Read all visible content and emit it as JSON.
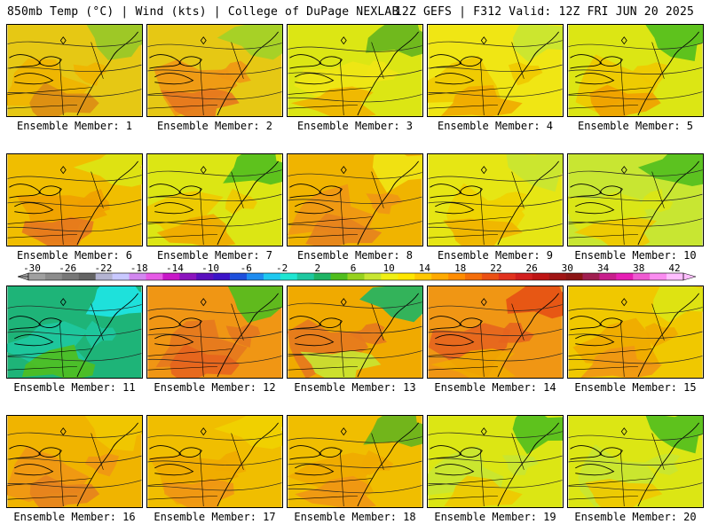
{
  "header": {
    "left": "850mb Temp (°C) | Wind (kts) | College of DuPage NEXLAB",
    "right": "12Z GEFS | F312 Valid: 12Z FRI JUN 20 2025"
  },
  "colorbar": {
    "ticks": [
      "-30",
      "-26",
      "-22",
      "-18",
      "-14",
      "-10",
      "-6",
      "-2",
      "2",
      "6",
      "10",
      "14",
      "18",
      "22",
      "26",
      "30",
      "34",
      "38",
      "42"
    ],
    "colors": [
      "#a0a0a0",
      "#8c8c8c",
      "#787878",
      "#646464",
      "#b4b4d2",
      "#c8c8ff",
      "#d287f0",
      "#e65ae6",
      "#c818c8",
      "#8c14be",
      "#5a0fbe",
      "#3c14c8",
      "#1e50dc",
      "#1e8cf0",
      "#1ec8f0",
      "#1ee6d2",
      "#1ec8a0",
      "#1eb464",
      "#50be1e",
      "#96d21e",
      "#c8e632",
      "#f0f014",
      "#ffe600",
      "#ffc800",
      "#ffaa00",
      "#ff8c00",
      "#f56e0a",
      "#eb5014",
      "#e1321e",
      "#d21e1e",
      "#be1414",
      "#a01414",
      "#8c1414",
      "#a01e50",
      "#c81e8c",
      "#e61eb4",
      "#f05ad2",
      "#fa8cf0",
      "#ffbeff"
    ]
  },
  "panels": [
    {
      "label": "Ensemble Member: 1",
      "palette": [
        "#e6c814",
        "#f0b400",
        "#dc8c14",
        "#96c828"
      ]
    },
    {
      "label": "Ensemble Member: 2",
      "palette": [
        "#e6c814",
        "#f09614",
        "#e6781e",
        "#a0d228"
      ]
    },
    {
      "label": "Ensemble Member: 3",
      "palette": [
        "#dce614",
        "#f0e614",
        "#f0b400",
        "#64b41e"
      ]
    },
    {
      "label": "Ensemble Member: 4",
      "palette": [
        "#f0e614",
        "#f0c800",
        "#f0aa00",
        "#c8e632"
      ]
    },
    {
      "label": "Ensemble Member: 5",
      "palette": [
        "#dce614",
        "#f0c800",
        "#f0a000",
        "#50be1e"
      ]
    },
    {
      "label": "Ensemble Member: 6",
      "palette": [
        "#f0be00",
        "#f0a000",
        "#e6781e",
        "#dce614"
      ]
    },
    {
      "label": "Ensemble Member: 7",
      "palette": [
        "#dce614",
        "#f0c800",
        "#f0aa00",
        "#50be1e"
      ]
    },
    {
      "label": "Ensemble Member: 8",
      "palette": [
        "#f0b400",
        "#f09614",
        "#e6821e",
        "#f0e614"
      ]
    },
    {
      "label": "Ensemble Member: 9",
      "palette": [
        "#e6e614",
        "#f0d200",
        "#f0b400",
        "#c8e632"
      ]
    },
    {
      "label": "Ensemble Member: 10",
      "palette": [
        "#c8e632",
        "#dce614",
        "#f0c800",
        "#50be1e"
      ]
    },
    {
      "label": "Ensemble Member: 11",
      "palette": [
        "#1eb478",
        "#1ec8a0",
        "#50be1e",
        "#1ee6e6"
      ]
    },
    {
      "label": "Ensemble Member: 12",
      "palette": [
        "#f09614",
        "#e6781e",
        "#e6641e",
        "#50be1e"
      ]
    },
    {
      "label": "Ensemble Member: 13",
      "palette": [
        "#f0aa00",
        "#e6781e",
        "#c8e632",
        "#1eb464"
      ]
    },
    {
      "label": "Ensemble Member: 14",
      "palette": [
        "#f09614",
        "#e6641e",
        "#f0aa00",
        "#e65014"
      ]
    },
    {
      "label": "Ensemble Member: 15",
      "palette": [
        "#f0c800",
        "#f0aa00",
        "#f09614",
        "#dce614"
      ]
    },
    {
      "label": "Ensemble Member: 16",
      "palette": [
        "#f0b400",
        "#f09614",
        "#e6821e",
        "#f0c800"
      ]
    },
    {
      "label": "Ensemble Member: 17",
      "palette": [
        "#f0be00",
        "#f0aa00",
        "#f09614",
        "#f0d200"
      ]
    },
    {
      "label": "Ensemble Member: 18",
      "palette": [
        "#f0be00",
        "#f0aa00",
        "#f09614",
        "#64b41e"
      ]
    },
    {
      "label": "Ensemble Member: 19",
      "palette": [
        "#dce614",
        "#c8e632",
        "#f0c800",
        "#50be1e"
      ]
    },
    {
      "label": "Ensemble Member: 20",
      "palette": [
        "#dce614",
        "#c8e632",
        "#f0c800",
        "#50be1e"
      ]
    }
  ]
}
